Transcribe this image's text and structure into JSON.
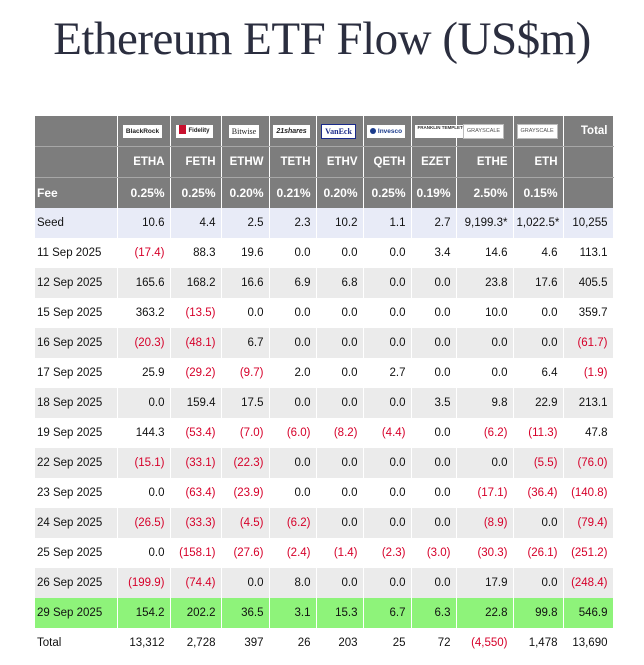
{
  "title": "Ethereum ETF Flow (US$m)",
  "colors": {
    "header_bg": "#7d7d7d",
    "negative": "#d6002a",
    "highlight_row": "#8ef37a",
    "seed_row": "#e8ebf7"
  },
  "issuers": [
    {
      "icon": "blackrock-logo",
      "text": "BlackRock"
    },
    {
      "icon": "fidelity-logo",
      "text": "Fidelity"
    },
    {
      "icon": "bitwise-logo",
      "text": "Bitwise"
    },
    {
      "icon": "21shares-logo",
      "text": "21shares"
    },
    {
      "icon": "vaneck-logo",
      "text": "VanEck"
    },
    {
      "icon": "invesco-logo",
      "text": "Invesco"
    },
    {
      "icon": "franklin-templeton-logo",
      "text": "FRANKLIN TEMPLETON"
    },
    {
      "icon": "grayscale-logo",
      "text": "GRAYSCALE"
    },
    {
      "icon": "grayscale-logo",
      "text": "GRAYSCALE"
    }
  ],
  "total_header": "Total",
  "tickers": [
    "ETHA",
    "FETH",
    "ETHW",
    "TETH",
    "ETHV",
    "QETH",
    "EZET",
    "ETHE",
    "ETH"
  ],
  "fee_label": "Fee",
  "fees": [
    "0.25%",
    "0.25%",
    "0.20%",
    "0.21%",
    "0.20%",
    "0.25%",
    "0.19%",
    "2.50%",
    "0.15%"
  ],
  "rows": [
    {
      "label": "Seed",
      "values": [
        "10.6",
        "4.4",
        "2.5",
        "2.3",
        "10.2",
        "1.1",
        "2.7",
        "9,199.3*",
        "1,022.5*",
        "10,255"
      ]
    },
    {
      "label": "11 Sep 2025",
      "values": [
        "(17.4)",
        "88.3",
        "19.6",
        "0.0",
        "0.0",
        "0.0",
        "3.4",
        "14.6",
        "4.6",
        "113.1"
      ]
    },
    {
      "label": "12 Sep 2025",
      "values": [
        "165.6",
        "168.2",
        "16.6",
        "6.9",
        "6.8",
        "0.0",
        "0.0",
        "23.8",
        "17.6",
        "405.5"
      ]
    },
    {
      "label": "15 Sep 2025",
      "values": [
        "363.2",
        "(13.5)",
        "0.0",
        "0.0",
        "0.0",
        "0.0",
        "0.0",
        "10.0",
        "0.0",
        "359.7"
      ]
    },
    {
      "label": "16 Sep 2025",
      "values": [
        "(20.3)",
        "(48.1)",
        "6.7",
        "0.0",
        "0.0",
        "0.0",
        "0.0",
        "0.0",
        "0.0",
        "(61.7)"
      ]
    },
    {
      "label": "17 Sep 2025",
      "values": [
        "25.9",
        "(29.2)",
        "(9.7)",
        "2.0",
        "0.0",
        "2.7",
        "0.0",
        "0.0",
        "6.4",
        "(1.9)"
      ]
    },
    {
      "label": "18 Sep 2025",
      "values": [
        "0.0",
        "159.4",
        "17.5",
        "0.0",
        "0.0",
        "0.0",
        "3.5",
        "9.8",
        "22.9",
        "213.1"
      ]
    },
    {
      "label": "19 Sep 2025",
      "values": [
        "144.3",
        "(53.4)",
        "(7.0)",
        "(6.0)",
        "(8.2)",
        "(4.4)",
        "0.0",
        "(6.2)",
        "(11.3)",
        "47.8"
      ]
    },
    {
      "label": "22 Sep 2025",
      "values": [
        "(15.1)",
        "(33.1)",
        "(22.3)",
        "0.0",
        "0.0",
        "0.0",
        "0.0",
        "0.0",
        "(5.5)",
        "(76.0)"
      ]
    },
    {
      "label": "23 Sep 2025",
      "values": [
        "0.0",
        "(63.4)",
        "(23.9)",
        "0.0",
        "0.0",
        "0.0",
        "0.0",
        "(17.1)",
        "(36.4)",
        "(140.8)"
      ]
    },
    {
      "label": "24 Sep 2025",
      "values": [
        "(26.5)",
        "(33.3)",
        "(4.5)",
        "(6.2)",
        "0.0",
        "0.0",
        "0.0",
        "(8.9)",
        "0.0",
        "(79.4)"
      ]
    },
    {
      "label": "25 Sep 2025",
      "values": [
        "0.0",
        "(158.1)",
        "(27.6)",
        "(2.4)",
        "(1.4)",
        "(2.3)",
        "(3.0)",
        "(30.3)",
        "(26.1)",
        "(251.2)"
      ]
    },
    {
      "label": "26 Sep 2025",
      "values": [
        "(199.9)",
        "(74.4)",
        "0.0",
        "8.0",
        "0.0",
        "0.0",
        "0.0",
        "17.9",
        "0.0",
        "(248.4)"
      ]
    },
    {
      "label": "29 Sep 2025",
      "values": [
        "154.2",
        "202.2",
        "36.5",
        "3.1",
        "15.3",
        "6.7",
        "6.3",
        "22.8",
        "99.8",
        "546.9"
      ]
    },
    {
      "label": "Total",
      "values": [
        "13,312",
        "2,728",
        "397",
        "26",
        "203",
        "25",
        "72",
        "(4,550)",
        "1,478",
        "13,690"
      ]
    }
  ]
}
